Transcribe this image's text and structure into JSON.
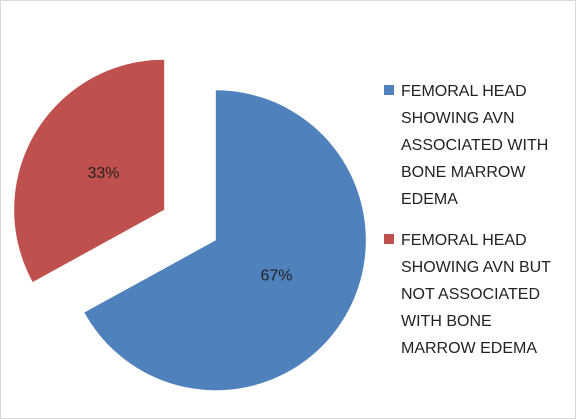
{
  "chart_data": {
    "type": "pie",
    "categories": [
      "FEMORAL HEAD SHOWING AVN ASSOCIATED WITH BONE MARROW EDEMA",
      "FEMORAL HEAD SHOWING AVN BUT NOT ASSOCIATED WITH BONE MARROW EDEMA"
    ],
    "values": [
      67,
      33
    ],
    "value_labels": [
      "67%",
      "33%"
    ],
    "colors": [
      "#4f81bd",
      "#c0504d"
    ],
    "legend": "right"
  }
}
